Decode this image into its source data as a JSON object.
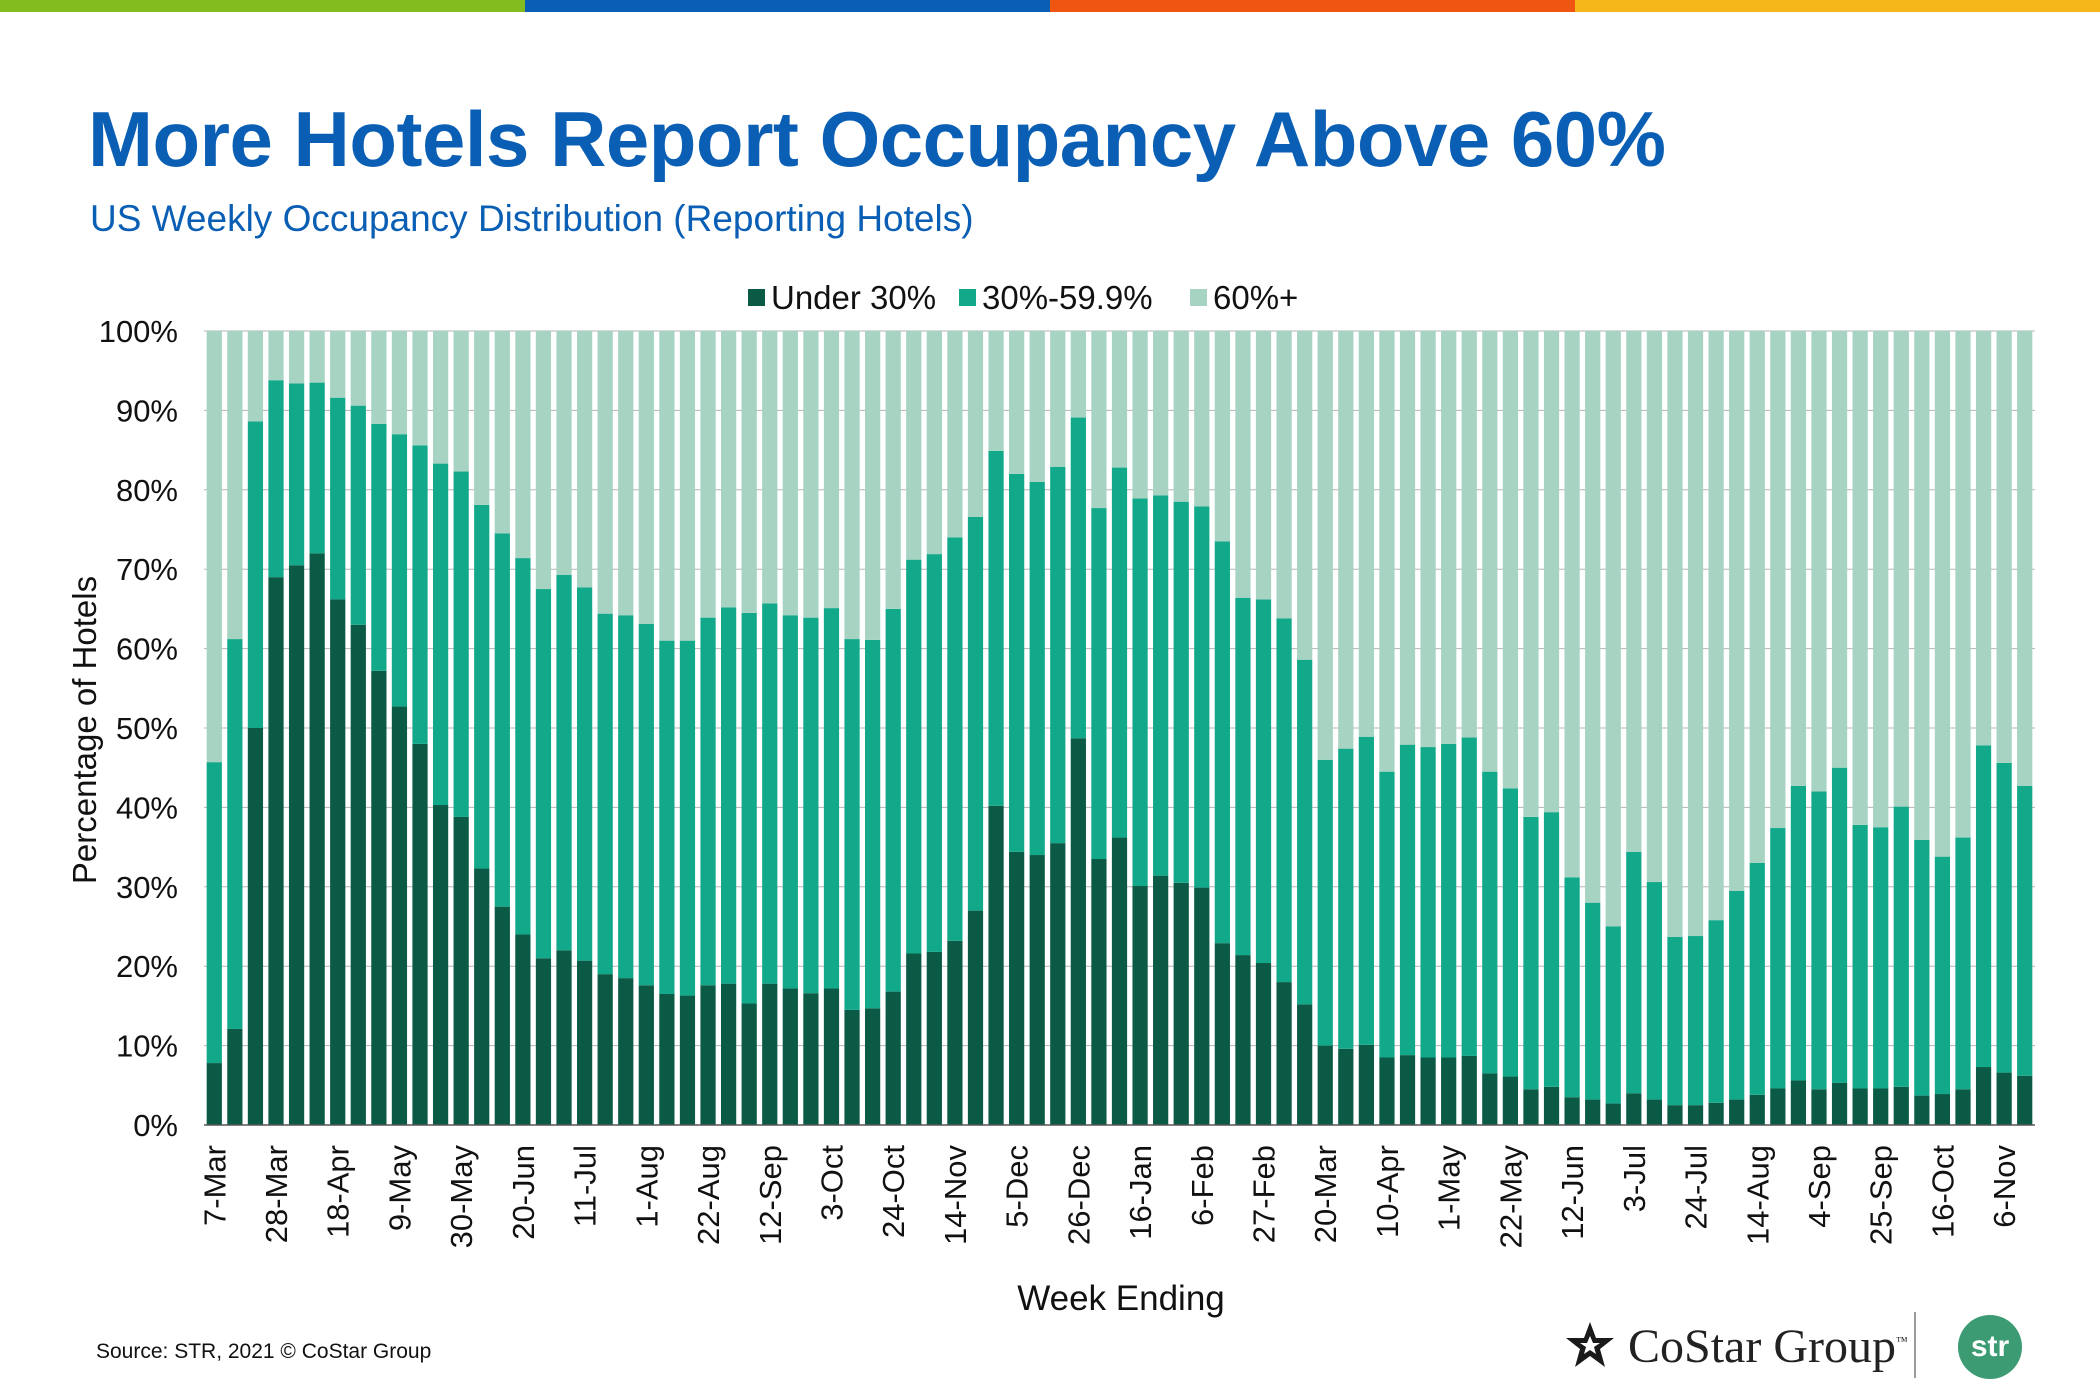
{
  "header": {
    "title": "More Hotels Report Occupancy Above 60%",
    "subtitle": "US Weekly Occupancy Distribution (Reporting Hotels)"
  },
  "brand_colors": [
    "#82bc1e",
    "#0a5fb4",
    "#ef5612",
    "#f5b719"
  ],
  "chart_data": {
    "type": "bar",
    "stacked": true,
    "xlabel": "Week Ending",
    "ylabel": "Percentage of Hotels",
    "ylim": [
      0,
      100
    ],
    "yticks": [
      "0%",
      "10%",
      "20%",
      "30%",
      "40%",
      "50%",
      "60%",
      "70%",
      "80%",
      "90%",
      "100%"
    ],
    "grid": true,
    "legend_position": "top-center",
    "categories": [
      "7-Mar",
      "14-Mar",
      "21-Mar",
      "28-Mar",
      "4-Apr",
      "11-Apr",
      "18-Apr",
      "25-Apr",
      "2-May",
      "9-May",
      "16-May",
      "23-May",
      "30-May",
      "6-Jun",
      "13-Jun",
      "20-Jun",
      "27-Jun",
      "4-Jul",
      "11-Jul",
      "18-Jul",
      "25-Jul",
      "1-Aug",
      "8-Aug",
      "15-Aug",
      "22-Aug",
      "29-Aug",
      "5-Sep",
      "12-Sep",
      "19-Sep",
      "26-Sep",
      "3-Oct",
      "10-Oct",
      "17-Oct",
      "24-Oct",
      "31-Oct",
      "7-Nov",
      "14-Nov",
      "21-Nov",
      "28-Nov",
      "5-Dec",
      "12-Dec",
      "19-Dec",
      "26-Dec",
      "2-Jan",
      "9-Jan",
      "16-Jan",
      "23-Jan",
      "30-Jan",
      "6-Feb",
      "13-Feb",
      "20-Feb",
      "27-Feb",
      "6-Mar",
      "13-Mar",
      "20-Mar",
      "27-Mar",
      "3-Apr",
      "10-Apr",
      "17-Apr",
      "24-Apr",
      "1-May",
      "8-May",
      "15-May",
      "22-May",
      "29-May",
      "5-Jun",
      "12-Jun",
      "19-Jun",
      "26-Jun",
      "3-Jul",
      "10-Jul",
      "17-Jul",
      "24-Jul",
      "31-Jul",
      "7-Aug",
      "14-Aug",
      "21-Aug",
      "28-Aug",
      "4-Sep",
      "11-Sep",
      "18-Sep",
      "25-Sep",
      "2-Oct",
      "9-Oct",
      "16-Oct",
      "23-Oct",
      "30-Oct",
      "6-Nov",
      "13-Nov"
    ],
    "labeled_categories": [
      "7-Mar",
      "28-Mar",
      "18-Apr",
      "9-May",
      "30-May",
      "20-Jun",
      "11-Jul",
      "1-Aug",
      "22-Aug",
      "12-Sep",
      "3-Oct",
      "24-Oct",
      "14-Nov",
      "5-Dec",
      "26-Dec",
      "16-Jan",
      "6-Feb",
      "27-Feb",
      "20-Mar",
      "10-Apr",
      "1-May",
      "22-May",
      "12-Jun",
      "3-Jul",
      "24-Jul",
      "14-Aug",
      "4-Sep",
      "25-Sep",
      "16-Oct",
      "6-Nov"
    ],
    "series": [
      {
        "name": "Under 30%",
        "color": "#0b5a45",
        "values": [
          7.8,
          12.1,
          50,
          69,
          70.5,
          72,
          66.2,
          63,
          57.2,
          52.7,
          48,
          40.3,
          38.8,
          32.3,
          27.5,
          24,
          21,
          22,
          20.7,
          19,
          18.5,
          17.6,
          16.5,
          16.3,
          17.6,
          17.8,
          15.3,
          17.8,
          17.2,
          16.6,
          17.2,
          14.5,
          14.7,
          16.8,
          21.6,
          21.8,
          23.2,
          27,
          40.2,
          34.4,
          34,
          35.5,
          48.7,
          33.5,
          36.2,
          30.1,
          31.4,
          30.5,
          29.9,
          22.9,
          21.4,
          20.4,
          18,
          15.2,
          10,
          9.6,
          10.1,
          8.5,
          8.8,
          8.5,
          8.5,
          8.7,
          6.5,
          6.1,
          4.5,
          4.8,
          3.5,
          3.2,
          2.7,
          4,
          3.2,
          2.5,
          2.5,
          2.8,
          3.2,
          3.8,
          4.6,
          5.6,
          4.5,
          5.3,
          4.6,
          4.6,
          4.8,
          3.7,
          3.9,
          4.5,
          7.3,
          6.6,
          6.2
        ]
      },
      {
        "name": "30%-59.9%",
        "color": "#12a88a",
        "values": [
          37.9,
          49.1,
          38.6,
          24.8,
          22.9,
          21.5,
          25.4,
          27.6,
          31.1,
          34.3,
          37.6,
          43,
          43.5,
          45.8,
          47,
          47.4,
          46.5,
          47.3,
          47,
          45.4,
          45.7,
          45.5,
          44.5,
          44.7,
          46.3,
          47.4,
          49.2,
          47.9,
          47,
          47.3,
          47.9,
          46.7,
          46.4,
          48.2,
          49.6,
          50.1,
          50.8,
          49.6,
          44.7,
          47.6,
          47,
          47.4,
          40.4,
          44.2,
          46.6,
          48.8,
          47.9,
          48,
          48,
          50.6,
          45,
          45.8,
          45.8,
          43.4,
          36,
          37.8,
          38.8,
          36,
          39.1,
          39.1,
          39.5,
          40.1,
          38,
          36.3,
          34.3,
          34.6,
          27.7,
          24.8,
          22.3,
          30.4,
          27.4,
          21.2,
          21.3,
          23,
          26.3,
          29.2,
          32.8,
          37.1,
          37.5,
          39.7,
          33.2,
          32.9,
          35.3,
          32.2,
          29.9,
          31.7,
          40.5,
          39,
          36.5
        ]
      },
      {
        "name": "60%+",
        "color": "#a6d3c2",
        "values": [
          54.3,
          38.8,
          11.4,
          6.2,
          6.6,
          6.5,
          8.4,
          9.4,
          11.7,
          13,
          14.4,
          16.7,
          17.7,
          21.9,
          25.5,
          28.6,
          32.5,
          30.7,
          32.3,
          35.6,
          35.8,
          36.9,
          39,
          39,
          36.1,
          34.8,
          35.5,
          34.3,
          35.8,
          36.1,
          34.9,
          38.8,
          38.9,
          35,
          28.8,
          28.1,
          26,
          23.4,
          15.1,
          18,
          19,
          17.1,
          10.9,
          22.3,
          17.2,
          21.1,
          20.7,
          21.5,
          22.1,
          26.5,
          33.6,
          33.8,
          36.2,
          41.4,
          54,
          52.6,
          51.1,
          55.5,
          52.1,
          52.4,
          52,
          51.2,
          55.5,
          57.6,
          61.2,
          60.6,
          68.8,
          72,
          75,
          65.6,
          69.4,
          76.3,
          76.2,
          74.2,
          70.5,
          67,
          62.6,
          57.3,
          58,
          55,
          62.2,
          62.5,
          59.9,
          64.1,
          66.2,
          63.8,
          52.2,
          54.4,
          57.3
        ]
      }
    ]
  },
  "footer": {
    "source": "Source: STR, 2021 © CoStar Group",
    "costar_logo_text": "CoStar Group",
    "costar_tm": "™",
    "str_logo_text": "str"
  }
}
